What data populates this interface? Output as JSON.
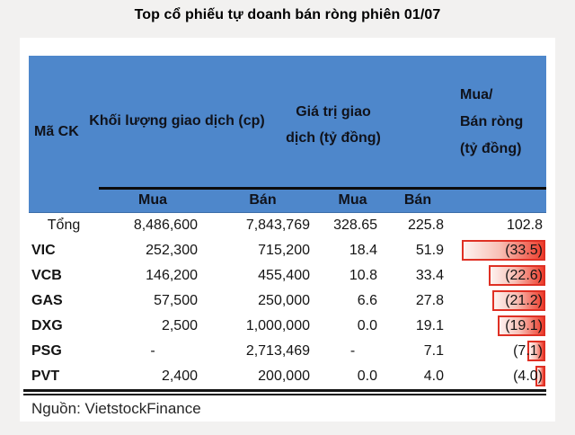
{
  "title": "Top cổ phiếu tự doanh bán ròng phiên 01/07",
  "colors": {
    "header_bg": "#4e87cb",
    "bar_border": "#df3024",
    "bar_fill_end": "#ee3d2c",
    "page_bg": "#f2f1f0"
  },
  "chart_data": {
    "type": "table",
    "title": "Top cổ phiếu tự doanh bán ròng phiên 01/07",
    "columns": [
      "Mã CK",
      "Khối lượng giao dịch (cp) - Mua",
      "Khối lượng giao dịch (cp) - Bán",
      "Giá trị giao dịch (tỷ đồng) - Mua",
      "Giá trị giao dịch (tỷ đồng) - Bán",
      "Mua/Bán ròng (tỷ đồng)"
    ],
    "rows": [
      [
        "Tổng",
        "8,486,600",
        "7,843,769",
        "328.65",
        "225.8",
        "102.8"
      ],
      [
        "VIC",
        "252,300",
        "715,200",
        "18.4",
        "51.9",
        "(33.5)"
      ],
      [
        "VCB",
        "146,200",
        "455,400",
        "10.8",
        "33.4",
        "(22.6)"
      ],
      [
        "GAS",
        "57,500",
        "250,000",
        "6.6",
        "27.8",
        "(21.2)"
      ],
      [
        "DXG",
        "2,500",
        "1,000,000",
        "0.0",
        "19.1",
        "(19.1)"
      ],
      [
        "PSG",
        "-",
        "2,713,469",
        "-",
        "7.1",
        "(7.1)"
      ],
      [
        "PVT",
        "2,400",
        "200,000",
        "0.0",
        "4.0",
        "(4.0)"
      ]
    ]
  },
  "table": {
    "col_headers": {
      "ticker": "Mã CK",
      "volume": "Khối lượng giao dịch (cp)",
      "value": "Giá trị giao\ndịch (tỷ đồng)",
      "net": "Mua/\nBán ròng\n(tỷ đồng)"
    },
    "sub_headers": {
      "vol_buy": "Mua",
      "vol_sell": "Bán",
      "val_buy": "Mua",
      "val_sell": "Bán"
    },
    "rows": [
      {
        "ticker": "Tổng",
        "vol_buy": "8,486,600",
        "vol_sell": "7,843,769",
        "val_buy": "328.65",
        "val_sell": "225.8",
        "net": "102.8",
        "bar_pct": 0
      },
      {
        "ticker": "VIC",
        "vol_buy": "252,300",
        "vol_sell": "715,200",
        "val_buy": "18.4",
        "val_sell": "51.9",
        "net": "(33.5)",
        "bar_pct": 86
      },
      {
        "ticker": "VCB",
        "vol_buy": "146,200",
        "vol_sell": "455,400",
        "val_buy": "10.8",
        "val_sell": "33.4",
        "net": "(22.6)",
        "bar_pct": 58
      },
      {
        "ticker": "GAS",
        "vol_buy": "57,500",
        "vol_sell": "250,000",
        "val_buy": "6.6",
        "val_sell": "27.8",
        "net": "(21.2)",
        "bar_pct": 55
      },
      {
        "ticker": "DXG",
        "vol_buy": "2,500",
        "vol_sell": "1,000,000",
        "val_buy": "0.0",
        "val_sell": "19.1",
        "net": "(19.1)",
        "bar_pct": 49
      },
      {
        "ticker": "PSG",
        "vol_buy": "-",
        "vol_sell": "2,713,469",
        "val_buy": "-",
        "val_sell": "7.1",
        "net": "(7.1)",
        "bar_pct": 18.5
      },
      {
        "ticker": "PVT",
        "vol_buy": "2,400",
        "vol_sell": "200,000",
        "val_buy": "0.0",
        "val_sell": "4.0",
        "net": "(4.0)",
        "bar_pct": 10.5
      }
    ],
    "source": "Nguồn: VietstockFinance"
  }
}
